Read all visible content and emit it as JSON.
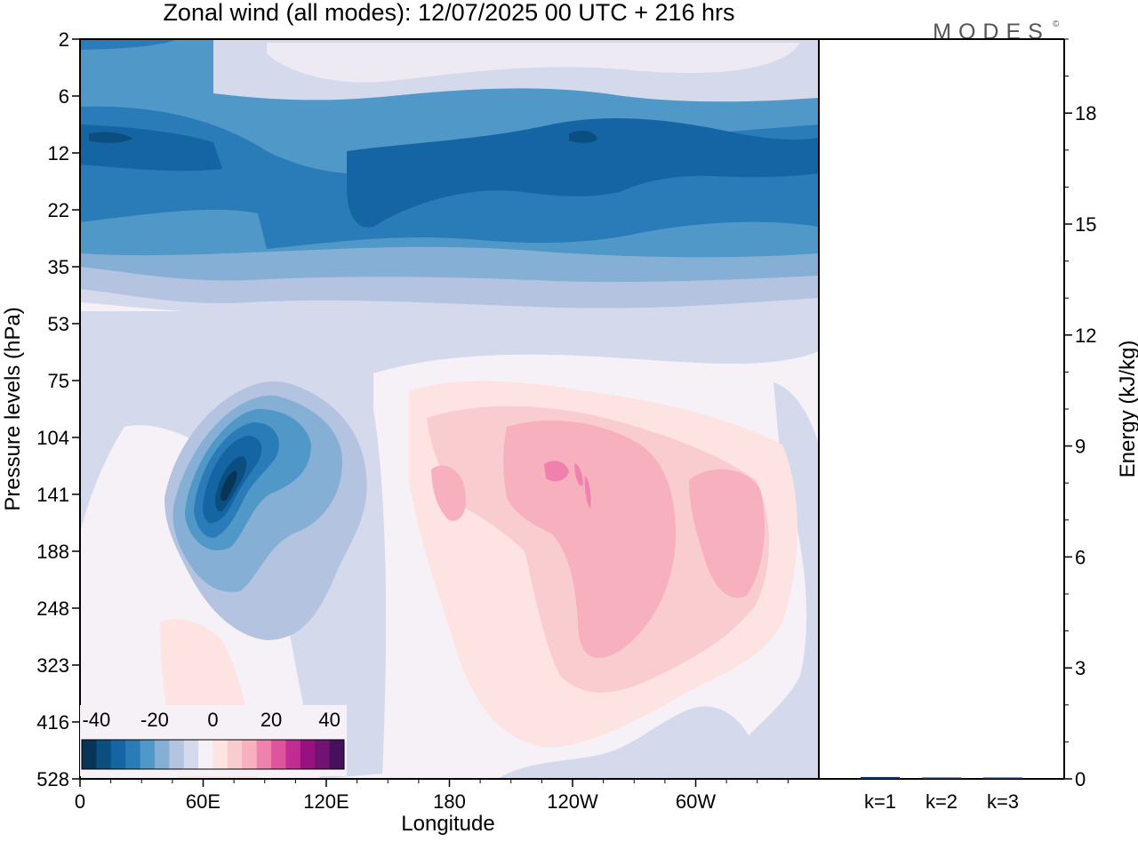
{
  "header": {
    "title": "Zonal wind (all modes):  12/07/2025  00 UTC  + 216 hrs",
    "logo_text": "MODES",
    "logo_mark": "©"
  },
  "chart_data": [
    {
      "type": "heatmap",
      "title": "Zonal wind (all modes):  12/07/2025  00 UTC  + 216 hrs",
      "xlabel": "Longitude",
      "ylabel": "Pressure levels (hPa)",
      "x_tick_labels": [
        "0",
        "60E",
        "120E",
        "180",
        "120W",
        "60W"
      ],
      "y_tick_labels": [
        "2",
        "6",
        "12",
        "22",
        "35",
        "53",
        "75",
        "104",
        "141",
        "188",
        "248",
        "323",
        "416",
        "528"
      ],
      "y_scale": "level-index (non-linear pressure)",
      "colorbar": {
        "tick_labels": [
          "-40",
          "-20",
          "0",
          "20",
          "40"
        ],
        "range": [
          -45,
          45
        ],
        "step": 5,
        "colors": [
          "#083557",
          "#0b4f80",
          "#1565a5",
          "#2a7cb8",
          "#5098c8",
          "#86afd5",
          "#b3c3e0",
          "#d4d9ec",
          "#f6f1f7",
          "#fde3e2",
          "#f9cdcf",
          "#f6b0be",
          "#ef82ac",
          "#e0539d",
          "#c02c8f",
          "#98117f",
          "#721272",
          "#46105e"
        ]
      },
      "features": [
        {
          "description": "easterly band",
          "levels": "6-35 hPa",
          "value_range": [
            -30,
            -15
          ]
        },
        {
          "description": "easterly core",
          "levels": "10-30 hPa",
          "longitudes": "~100E-60W",
          "value": -30
        },
        {
          "description": "easterly jet",
          "levels": "100-250 hPa",
          "longitudes": "~50E-100E",
          "value_min": -40
        },
        {
          "description": "westerly region",
          "levels": "75-420 hPa",
          "longitudes": "~160E-60W",
          "value_max": 25
        }
      ]
    },
    {
      "type": "bar",
      "ylabel": "Energy (kJ/kg)",
      "categories": [
        "k=1",
        "k=2",
        "k=3"
      ],
      "values": [
        0.05,
        0.02,
        0.01
      ],
      "ylim": [
        0,
        20
      ],
      "y_tick_labels": [
        "0",
        "3",
        "6",
        "9",
        "12",
        "15",
        "18"
      ],
      "bar_color": "#0a2e73",
      "axis_side": "right"
    }
  ]
}
